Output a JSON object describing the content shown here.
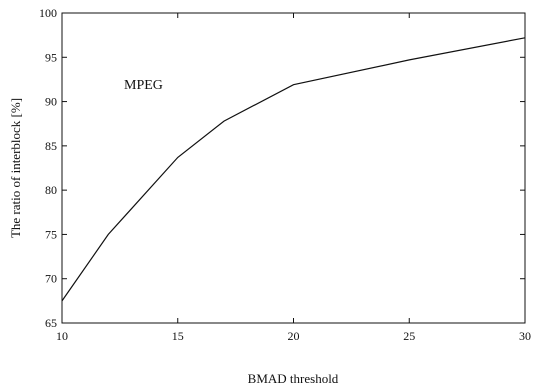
{
  "chart_data": {
    "type": "line",
    "xlabel": "BMAD threshold",
    "ylabel": "The ratio of interblock [%]",
    "annotation": "MPEG",
    "xlim": [
      10,
      30
    ],
    "ylim": [
      65,
      100
    ],
    "x_ticks": [
      "10",
      "15",
      "20",
      "25",
      "30"
    ],
    "y_ticks": [
      "65",
      "70",
      "75",
      "80",
      "85",
      "90",
      "95",
      "100"
    ],
    "grid": false,
    "series": [
      {
        "x": [
          10,
          12,
          15,
          17,
          20,
          25,
          30
        ],
        "y": [
          67.5,
          75.0,
          83.7,
          87.8,
          91.9,
          94.7,
          97.2
        ]
      }
    ]
  }
}
